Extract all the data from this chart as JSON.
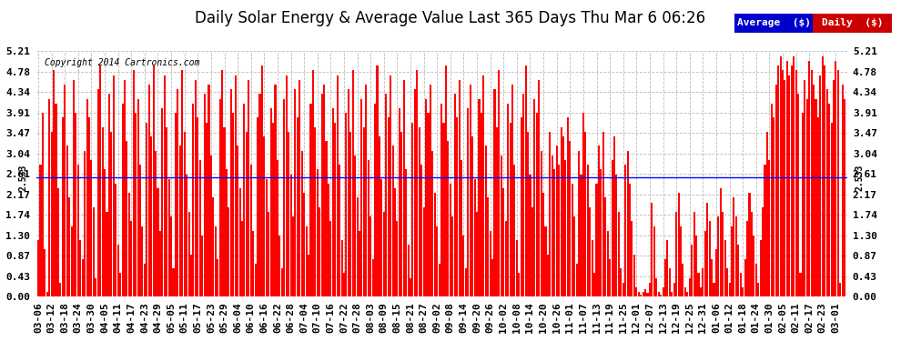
{
  "title": "Daily Solar Energy & Average Value Last 365 Days Thu Mar 6 06:26",
  "copyright": "Copyright 2014 Cartronics.com",
  "average_value": 2.533,
  "ymax": 5.21,
  "ymin": 0.0,
  "yticks": [
    0.0,
    0.43,
    0.87,
    1.3,
    1.74,
    2.17,
    2.61,
    3.04,
    3.47,
    3.91,
    4.34,
    4.78,
    5.21
  ],
  "bar_color": "#ff0000",
  "average_line_color": "#0000ff",
  "background_color": "#ffffff",
  "grid_color": "#bbbbbb",
  "legend_avg_bg": "#0000cc",
  "legend_daily_bg": "#cc0000",
  "legend_text_color": "#ffffff",
  "title_fontsize": 12,
  "tick_label_fontsize": 8,
  "x_tick_labels": [
    "03-06",
    "03-12",
    "03-18",
    "03-24",
    "03-30",
    "04-05",
    "04-11",
    "04-17",
    "04-23",
    "04-29",
    "05-05",
    "05-11",
    "05-17",
    "05-23",
    "05-29",
    "06-04",
    "06-10",
    "06-16",
    "06-22",
    "06-28",
    "07-04",
    "07-10",
    "07-16",
    "07-22",
    "07-28",
    "08-03",
    "08-09",
    "08-15",
    "08-21",
    "08-27",
    "09-02",
    "09-08",
    "09-14",
    "09-20",
    "09-26",
    "10-02",
    "10-08",
    "10-14",
    "10-20",
    "10-26",
    "11-01",
    "11-07",
    "11-13",
    "11-19",
    "11-25",
    "12-01",
    "12-07",
    "12-13",
    "12-19",
    "12-25",
    "12-31",
    "01-06",
    "01-12",
    "01-18",
    "01-24",
    "01-30",
    "02-05",
    "02-11",
    "02-17",
    "02-23",
    "03-01"
  ],
  "bar_values": [
    1.2,
    2.8,
    3.9,
    1.0,
    0.1,
    4.2,
    3.5,
    4.8,
    4.1,
    2.3,
    0.3,
    3.8,
    4.5,
    3.2,
    2.1,
    1.5,
    4.6,
    3.9,
    2.8,
    1.2,
    0.8,
    3.1,
    4.2,
    3.8,
    2.9,
    1.9,
    0.4,
    4.4,
    4.9,
    3.6,
    2.7,
    1.8,
    4.3,
    3.5,
    4.7,
    2.4,
    1.1,
    0.5,
    4.1,
    4.6,
    3.3,
    2.2,
    1.6,
    4.8,
    3.9,
    4.2,
    2.8,
    1.5,
    0.7,
    3.7,
    4.5,
    3.4,
    4.9,
    3.1,
    2.3,
    1.4,
    4.0,
    4.7,
    3.6,
    2.5,
    1.7,
    0.6,
    3.9,
    4.4,
    3.2,
    4.8,
    3.5,
    2.6,
    1.8,
    0.9,
    4.1,
    4.6,
    3.8,
    2.9,
    1.3,
    4.3,
    3.7,
    4.5,
    3.0,
    2.1,
    1.5,
    0.8,
    4.2,
    4.8,
    3.6,
    2.7,
    1.9,
    4.4,
    3.9,
    4.7,
    3.2,
    2.3,
    1.6,
    4.1,
    3.5,
    4.6,
    2.8,
    1.4,
    0.7,
    3.8,
    4.3,
    4.9,
    3.4,
    2.5,
    1.8,
    4.0,
    3.7,
    4.5,
    2.9,
    1.3,
    0.6,
    4.2,
    4.7,
    3.5,
    2.6,
    1.7,
    4.4,
    3.8,
    4.6,
    3.1,
    2.2,
    1.5,
    0.9,
    4.1,
    4.8,
    3.6,
    2.7,
    1.9,
    4.3,
    4.5,
    3.3,
    2.4,
    1.6,
    4.0,
    3.7,
    4.7,
    2.8,
    1.2,
    0.5,
    3.9,
    4.4,
    3.5,
    4.8,
    3.0,
    2.1,
    1.4,
    4.2,
    3.6,
    4.5,
    2.9,
    1.7,
    0.8,
    4.1,
    4.9,
    3.4,
    2.5,
    1.8,
    4.3,
    3.8,
    4.7,
    3.2,
    2.3,
    1.6,
    4.0,
    3.5,
    4.6,
    2.7,
    1.1,
    0.4,
    3.7,
    4.4,
    4.8,
    3.6,
    2.8,
    1.9,
    4.2,
    3.9,
    4.5,
    3.1,
    2.2,
    1.5,
    0.7,
    4.1,
    3.7,
    4.9,
    3.3,
    2.4,
    1.7,
    4.3,
    3.8,
    4.6,
    2.9,
    1.3,
    0.6,
    4.0,
    4.5,
    3.4,
    2.5,
    1.8,
    4.2,
    3.9,
    4.7,
    3.2,
    2.1,
    1.4,
    0.8,
    4.4,
    3.6,
    4.8,
    3.0,
    2.3,
    1.6,
    4.1,
    3.7,
    4.5,
    2.8,
    1.2,
    0.5,
    3.8,
    4.3,
    4.9,
    3.5,
    2.6,
    1.9,
    4.2,
    3.9,
    4.6,
    3.1,
    2.2,
    1.5,
    0.9,
    3.5,
    3.0,
    2.7,
    3.2,
    2.8,
    3.6,
    3.4,
    2.9,
    3.8,
    3.3,
    2.4,
    1.7,
    0.7,
    3.1,
    2.6,
    3.9,
    3.5,
    2.8,
    1.9,
    1.2,
    0.5,
    2.4,
    3.2,
    2.7,
    3.5,
    2.1,
    1.4,
    0.8,
    2.9,
    3.4,
    2.6,
    1.8,
    0.6,
    0.3,
    2.8,
    3.1,
    2.4,
    1.6,
    0.9,
    0.2,
    0.1,
    0.05,
    0.1,
    0.15,
    0.08,
    0.3,
    2.0,
    1.5,
    0.4,
    0.1,
    0.05,
    0.2,
    0.8,
    1.2,
    0.6,
    0.1,
    0.3,
    1.8,
    2.2,
    1.5,
    0.7,
    0.2,
    0.1,
    0.4,
    1.1,
    1.8,
    1.3,
    0.5,
    0.2,
    0.6,
    1.4,
    2.0,
    1.6,
    0.8,
    0.3,
    1.0,
    1.7,
    2.3,
    1.8,
    1.2,
    0.6,
    0.3,
    1.5,
    2.1,
    1.7,
    1.1,
    0.5,
    0.2,
    0.8,
    1.6,
    2.2,
    1.8,
    1.3,
    0.7,
    0.3,
    1.2,
    1.9,
    2.8,
    3.5,
    2.9,
    4.1,
    3.8,
    4.5,
    4.9,
    5.1,
    4.8,
    4.6,
    5.0,
    4.7,
    4.9,
    5.1,
    4.8,
    4.3,
    0.5,
    3.9,
    4.6,
    4.2,
    5.0,
    4.8,
    4.5,
    4.2,
    3.8,
    4.7,
    5.1,
    4.9,
    4.4,
    4.1,
    3.7,
    4.6,
    5.0,
    4.8,
    0.3,
    4.5,
    4.2
  ]
}
